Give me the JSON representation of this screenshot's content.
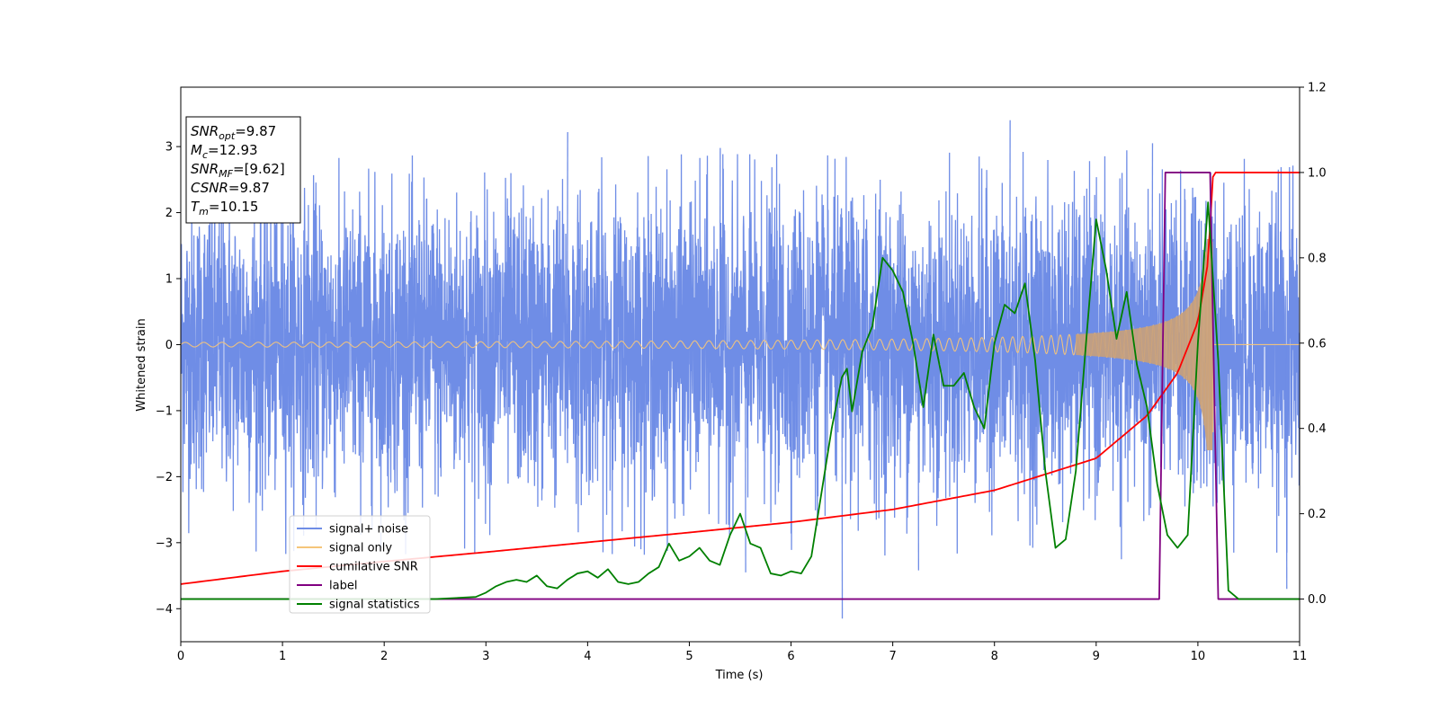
{
  "chart_data": {
    "type": "line",
    "xlabel": "Time (s)",
    "ylabel": "Whitened strain",
    "xlim": [
      0,
      11
    ],
    "ylim_left": [
      -4.5,
      3.9
    ],
    "ylim_right": [
      -0.1,
      1.2
    ],
    "x_ticks": [
      0,
      1,
      2,
      3,
      4,
      5,
      6,
      7,
      8,
      9,
      10,
      11
    ],
    "x_tick_labels": [
      "0",
      "1",
      "2",
      "3",
      "4",
      "5",
      "6",
      "7",
      "8",
      "9",
      "10",
      "11"
    ],
    "y_left_ticks": [
      -4,
      -3,
      -2,
      -1,
      0,
      1,
      2,
      3
    ],
    "y_left_tick_labels": [
      "−4",
      "−3",
      "−2",
      "−1",
      "0",
      "1",
      "2",
      "3"
    ],
    "y_right_ticks": [
      0.0,
      0.2,
      0.4,
      0.6,
      0.8,
      1.0,
      1.2
    ],
    "y_right_tick_labels": [
      "0.0",
      "0.2",
      "0.4",
      "0.6",
      "0.8",
      "1.0",
      "1.2"
    ],
    "grid": false,
    "legend_position": "lower-left",
    "annotation": {
      "lines": [
        {
          "main": "SNR",
          "sub": "opt",
          "value": "=9.87"
        },
        {
          "main": "M",
          "sub": "c",
          "value": "=12.93"
        },
        {
          "main": "SNR",
          "sub": "MF",
          "value": "=[9.62]"
        },
        {
          "main": "CSNR",
          "sub": "",
          "value": "=9.87"
        },
        {
          "main": "T",
          "sub": "m",
          "value": "=10.15"
        }
      ]
    },
    "series": [
      {
        "name": "signal+ noise",
        "axis": "left",
        "color": "#6f8de6",
        "kind": "noise",
        "envelope_typical": 1.4,
        "peak_max": 3.4,
        "peak_min": -4.15
      },
      {
        "name": "signal only",
        "axis": "left",
        "color": "#f5c57a",
        "kind": "chirp",
        "merger_time": 10.15,
        "peak_amplitude": 1.6
      },
      {
        "name": "cumilative SNR",
        "axis": "right",
        "color": "#ff0000",
        "x": [
          0,
          1,
          2,
          3,
          4,
          5,
          6,
          7,
          8,
          9,
          9.5,
          9.8,
          10.0,
          10.1,
          10.15,
          11
        ],
        "y": [
          0.035,
          0.065,
          0.088,
          0.11,
          0.133,
          0.156,
          0.18,
          0.21,
          0.255,
          0.33,
          0.43,
          0.53,
          0.65,
          0.79,
          1.0,
          1.0
        ]
      },
      {
        "name": "label",
        "axis": "right",
        "color": "#800080",
        "x": [
          0,
          9.62,
          9.68,
          10.12,
          10.2,
          11
        ],
        "y": [
          0,
          0,
          1,
          1,
          0,
          0
        ]
      },
      {
        "name": "signal statistics",
        "axis": "right",
        "color": "#008000",
        "x": [
          0,
          2.5,
          2.9,
          3.0,
          3.1,
          3.2,
          3.3,
          3.4,
          3.5,
          3.6,
          3.7,
          3.8,
          3.9,
          4.0,
          4.1,
          4.2,
          4.3,
          4.4,
          4.5,
          4.6,
          4.7,
          4.8,
          4.9,
          5.0,
          5.1,
          5.2,
          5.3,
          5.4,
          5.5,
          5.6,
          5.7,
          5.8,
          5.9,
          6.0,
          6.1,
          6.2,
          6.3,
          6.4,
          6.5,
          6.55,
          6.6,
          6.7,
          6.8,
          6.9,
          7.0,
          7.1,
          7.2,
          7.3,
          7.4,
          7.5,
          7.6,
          7.7,
          7.8,
          7.9,
          8.0,
          8.1,
          8.2,
          8.3,
          8.4,
          8.5,
          8.6,
          8.7,
          8.8,
          8.9,
          9.0,
          9.1,
          9.2,
          9.3,
          9.4,
          9.5,
          9.6,
          9.7,
          9.8,
          9.9,
          10.0,
          10.1,
          10.2,
          10.3,
          10.4,
          11
        ],
        "y": [
          0.0,
          0.0,
          0.005,
          0.015,
          0.03,
          0.04,
          0.045,
          0.04,
          0.055,
          0.03,
          0.025,
          0.045,
          0.06,
          0.065,
          0.05,
          0.07,
          0.04,
          0.035,
          0.04,
          0.06,
          0.075,
          0.13,
          0.09,
          0.1,
          0.12,
          0.09,
          0.08,
          0.15,
          0.2,
          0.13,
          0.12,
          0.06,
          0.055,
          0.065,
          0.06,
          0.1,
          0.25,
          0.4,
          0.52,
          0.54,
          0.44,
          0.58,
          0.64,
          0.8,
          0.77,
          0.72,
          0.6,
          0.45,
          0.62,
          0.5,
          0.5,
          0.53,
          0.45,
          0.4,
          0.6,
          0.69,
          0.67,
          0.74,
          0.56,
          0.3,
          0.12,
          0.14,
          0.3,
          0.6,
          0.89,
          0.77,
          0.61,
          0.72,
          0.55,
          0.45,
          0.27,
          0.15,
          0.12,
          0.15,
          0.6,
          0.93,
          0.56,
          0.02,
          0.0,
          0.0
        ]
      }
    ]
  }
}
